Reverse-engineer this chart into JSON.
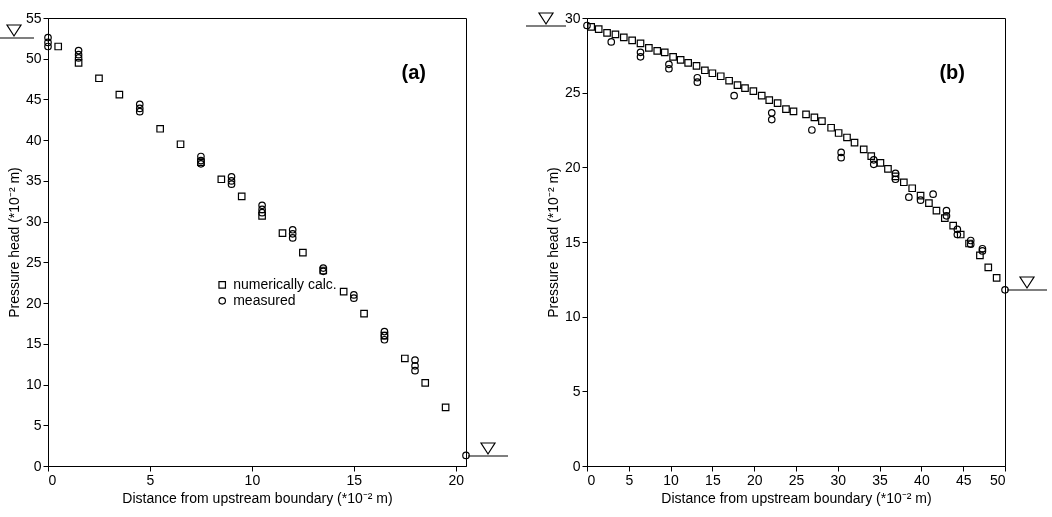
{
  "chart_data": [
    {
      "type": "scatter",
      "xlabel": "Distance from upstream boundary (*10⁻² m)",
      "ylabel": "Pressure head (*10⁻² m)",
      "annotations": [
        "(a)"
      ],
      "xlim": [
        0,
        20.5
      ],
      "xticks": [
        0,
        5,
        10,
        15,
        20
      ],
      "ylim": [
        0,
        55
      ],
      "yticks": [
        0,
        5,
        10,
        15,
        20,
        25,
        30,
        35,
        40,
        45,
        50,
        55
      ],
      "grid": false,
      "legend": "center",
      "series": [
        {
          "name": "numerically calc.",
          "color": "#000000",
          "marker": "square",
          "x": [
            0.5,
            1.5,
            2.5,
            3.5,
            4.5,
            5.5,
            6.5,
            7.5,
            8.5,
            9.5,
            10.5,
            11.5,
            12.5,
            13.5,
            14.5,
            15.5,
            16.5,
            17.5,
            18.5,
            19.5
          ],
          "values": [
            51.5,
            49.5,
            47.6,
            45.6,
            null,
            41.4,
            39.5,
            37.3,
            35.2,
            33.1,
            30.7,
            28.6,
            26.2,
            24.0,
            21.4,
            18.7,
            16.0,
            13.2,
            10.2,
            7.2
          ]
        },
        {
          "name": "measured",
          "color": "#000000",
          "marker": "circle",
          "x": [
            0,
            0,
            0,
            1.5,
            1.5,
            1.5,
            4.5,
            4.5,
            4.5,
            7.5,
            7.5,
            7.5,
            9,
            9,
            9,
            10.5,
            10.5,
            10.5,
            12,
            12,
            12,
            13.5,
            13.5,
            15,
            15,
            16.5,
            16.5,
            16.5,
            18,
            18,
            18,
            20.5
          ],
          "values": [
            52.6,
            52.0,
            51.5,
            51.0,
            50.5,
            50.1,
            44.4,
            43.9,
            43.5,
            38.0,
            37.5,
            37.1,
            35.5,
            35.0,
            34.6,
            32.0,
            31.5,
            31.1,
            29.0,
            28.5,
            28.0,
            24.3,
            23.9,
            21.0,
            20.6,
            16.5,
            16.0,
            15.5,
            13.0,
            12.3,
            11.7,
            1.3
          ]
        }
      ]
    },
    {
      "type": "scatter",
      "xlabel": "Distance from upstream boundary (*10⁻² m)",
      "ylabel": "Pressure head (*10⁻² m)",
      "annotations": [
        "(b)"
      ],
      "xlim": [
        0,
        50
      ],
      "xticks": [
        0,
        5,
        10,
        15,
        20,
        25,
        30,
        35,
        40,
        45,
        50
      ],
      "ylim": [
        0,
        30
      ],
      "yticks": [
        0,
        5,
        10,
        15,
        20,
        25,
        30
      ],
      "grid": false,
      "legend": "center",
      "series": [
        {
          "name": "numerically calc.",
          "color": "#000000",
          "marker": "square",
          "x": [
            0.5,
            1.4,
            2.4,
            3.4,
            4.4,
            5.4,
            6.4,
            7.4,
            8.4,
            9.3,
            10.3,
            11.2,
            12.1,
            13.1,
            14.1,
            15.0,
            16.0,
            17.0,
            18.0,
            18.9,
            19.9,
            20.9,
            21.8,
            22.8,
            23.8,
            24.7,
            26.2,
            27.2,
            28.1,
            29.2,
            30.1,
            31.1,
            32.0,
            33.1,
            34.0,
            35.1,
            36.0,
            36.9,
            37.9,
            38.9,
            39.9,
            40.9,
            41.8,
            42.8,
            43.8,
            44.7,
            45.7,
            47.0,
            48.0,
            49.0
          ],
          "values": [
            29.4,
            29.25,
            29.0,
            28.9,
            28.7,
            28.5,
            28.3,
            28.0,
            27.8,
            27.7,
            27.4,
            27.2,
            27.0,
            26.8,
            26.5,
            26.3,
            26.1,
            25.8,
            25.5,
            25.3,
            25.1,
            24.8,
            24.5,
            24.3,
            23.9,
            23.75,
            23.55,
            23.35,
            23.1,
            22.65,
            22.3,
            22.0,
            21.65,
            21.2,
            20.75,
            20.3,
            19.9,
            19.4,
            19.0,
            18.6,
            18.1,
            17.6,
            17.1,
            16.6,
            16.1,
            15.5,
            14.9,
            14.1,
            13.3,
            12.6
          ]
        },
        {
          "name": "measured",
          "color": "#000000",
          "marker": "circle",
          "x": [
            0,
            2.9,
            6.4,
            6.4,
            9.8,
            9.8,
            13.2,
            13.2,
            17.6,
            22.1,
            22.1,
            26.9,
            30.4,
            30.4,
            34.3,
            34.3,
            36.9,
            36.9,
            38.5,
            39.9,
            41.4,
            43.0,
            43.0,
            44.3,
            44.3,
            45.9,
            45.9,
            47.3,
            47.3,
            50
          ],
          "values": [
            29.5,
            28.4,
            27.7,
            27.4,
            26.9,
            26.6,
            26.0,
            25.7,
            24.8,
            23.65,
            23.2,
            22.5,
            21.0,
            20.65,
            20.5,
            20.2,
            19.6,
            19.2,
            18.0,
            17.8,
            18.2,
            17.1,
            16.75,
            15.85,
            15.5,
            15.1,
            14.85,
            14.55,
            14.4,
            11.8
          ]
        }
      ]
    }
  ]
}
